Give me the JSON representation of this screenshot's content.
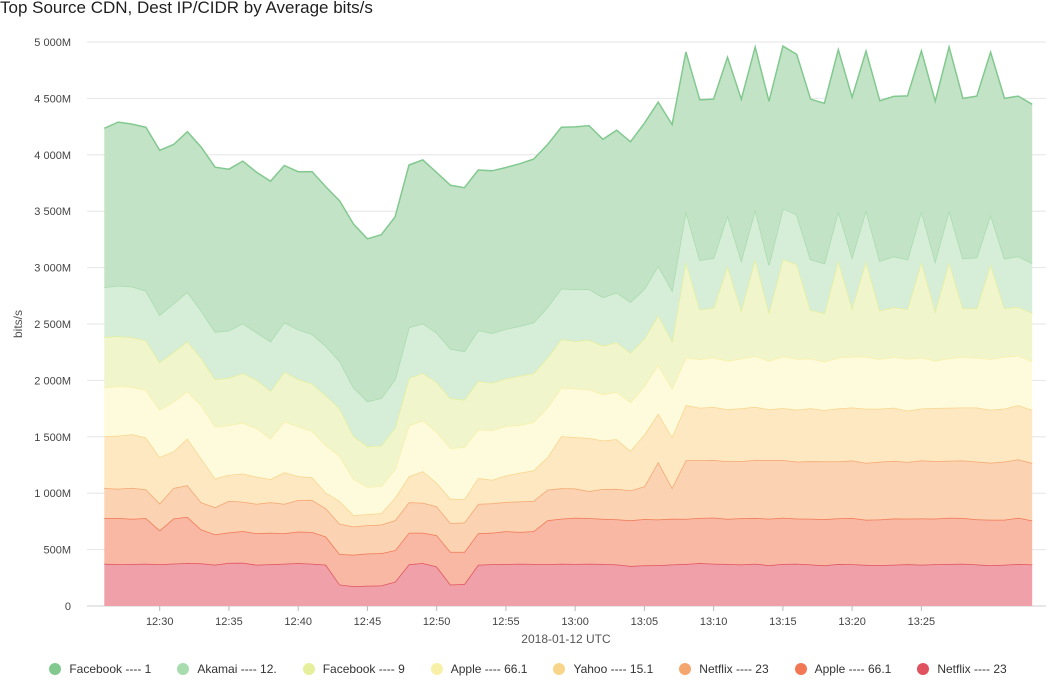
{
  "chart_data": {
    "type": "area",
    "stacked": true,
    "title": "Top Source CDN, Dest IP/CIDR by Average bits/s",
    "xlabel": "2018-01-12 UTC",
    "ylabel": "bits/s",
    "ylim": [
      0,
      5000
    ],
    "y_ticks": [
      0,
      500,
      1000,
      1500,
      2000,
      2500,
      3000,
      3500,
      4000,
      4500,
      5000
    ],
    "y_tick_labels": [
      "0",
      "500M",
      "1 000M",
      "1 500M",
      "2 000M",
      "2 500M",
      "3 000M",
      "3 500M",
      "4 000M",
      "4 500M",
      "5 000M"
    ],
    "x_start_minutes": 746,
    "x_step_minutes": 1,
    "x_ticks": [
      750,
      755,
      760,
      765,
      770,
      775,
      780,
      785,
      790,
      795,
      800,
      805
    ],
    "x_tick_labels": [
      "12:30",
      "12:35",
      "12:40",
      "12:45",
      "12:50",
      "12:55",
      "13:00",
      "13:05",
      "13:10",
      "13:15",
      "13:20",
      "13:25"
    ],
    "legend_position": "bottom",
    "series": [
      {
        "name": "Netflix ---- 23",
        "color": "#e0525e",
        "fill": "#f0a0a8",
        "values": [
          375,
          370,
          372,
          374,
          370,
          376,
          380,
          378,
          365,
          382,
          384,
          365,
          370,
          375,
          380,
          374,
          365,
          190,
          175,
          180,
          182,
          215,
          370,
          380,
          350,
          190,
          195,
          365,
          370,
          372,
          374,
          372,
          370,
          374,
          372,
          374,
          372,
          368,
          355,
          360,
          362,
          368,
          372,
          380,
          374,
          372,
          368,
          375,
          362,
          372,
          375,
          368,
          360,
          372,
          370,
          364,
          362,
          366,
          370,
          366,
          370,
          372,
          375,
          368,
          360,
          365,
          372,
          368
        ]
      },
      {
        "name": "Apple ---- 66.1",
        "color": "#f27755",
        "fill": "#f8b8a4",
        "values": [
          405,
          410,
          400,
          405,
          300,
          400,
          410,
          300,
          270,
          270,
          280,
          280,
          280,
          270,
          280,
          282,
          250,
          270,
          280,
          285,
          285,
          280,
          280,
          270,
          278,
          290,
          285,
          280,
          280,
          290,
          282,
          290,
          390,
          400,
          410,
          405,
          400,
          400,
          405,
          410,
          405,
          405,
          400,
          400,
          410,
          400,
          410,
          405,
          412,
          410,
          400,
          405,
          410,
          405,
          410,
          400,
          405,
          410,
          405,
          410,
          405,
          410,
          405,
          400,
          405,
          400,
          410,
          390
        ]
      },
      {
        "name": "Netflix ---- 23",
        "color": "#f5a66e",
        "fill": "#fbd2b2",
        "values": [
          265,
          260,
          275,
          255,
          240,
          270,
          280,
          240,
          240,
          280,
          260,
          260,
          270,
          260,
          280,
          285,
          250,
          270,
          250,
          250,
          255,
          265,
          270,
          265,
          255,
          255,
          260,
          260,
          260,
          260,
          270,
          270,
          270,
          270,
          260,
          240,
          265,
          270,
          265,
          290,
          510,
          275,
          520,
          512,
          510,
          512,
          505,
          515,
          520,
          512,
          505,
          510,
          512,
          505,
          510,
          505,
          512,
          510,
          502,
          515,
          510,
          505,
          510,
          512,
          505,
          515,
          518,
          510
        ]
      },
      {
        "name": "Yahoo ---- 15.1",
        "color": "#f9d58a",
        "fill": "#fde8c2",
        "values": [
          460,
          470,
          475,
          460,
          410,
          325,
          415,
          390,
          255,
          230,
          250,
          240,
          205,
          280,
          210,
          200,
          140,
          200,
          100,
          100,
          100,
          200,
          230,
          280,
          210,
          215,
          208,
          230,
          208,
          235,
          255,
          270,
          290,
          460,
          455,
          470,
          430,
          440,
          350,
          460,
          430,
          450,
          490,
          465,
          470,
          460,
          470,
          470,
          450,
          460,
          460,
          470,
          455,
          470,
          470,
          480,
          470,
          472,
          455,
          460,
          470,
          470,
          470,
          480,
          470,
          470,
          480,
          470
        ]
      },
      {
        "name": "Apple ---- 66.1",
        "color": "#f9f0a8",
        "fill": "#fefbdc",
        "values": [
          430,
          440,
          420,
          420,
          420,
          440,
          420,
          470,
          460,
          440,
          450,
          430,
          360,
          450,
          440,
          410,
          420,
          400,
          320,
          240,
          240,
          250,
          450,
          450,
          450,
          450,
          460,
          430,
          440,
          440,
          420,
          430,
          440,
          430,
          430,
          430,
          410,
          420,
          430,
          430,
          430,
          430,
          420,
          430,
          440,
          430,
          440,
          450,
          430,
          460,
          450,
          440,
          430,
          450,
          450,
          460,
          440,
          450,
          460,
          450,
          420,
          440,
          450,
          440,
          450,
          460,
          440,
          430
        ]
      },
      {
        "name": "Facebook ---- 9",
        "color": "#e6ef9c",
        "fill": "#f0f5cc",
        "values": [
          450,
          440,
          440,
          440,
          420,
          440,
          440,
          420,
          420,
          420,
          440,
          430,
          420,
          440,
          420,
          420,
          440,
          420,
          380,
          360,
          360,
          370,
          420,
          420,
          440,
          440,
          420,
          430,
          420,
          420,
          440,
          430,
          440,
          430,
          420,
          440,
          430,
          440,
          440,
          420,
          440,
          420,
          850,
          440,
          440,
          840,
          430,
          860,
          430,
          860,
          840,
          430,
          430,
          860,
          430,
          850,
          430,
          440,
          440,
          850,
          440,
          850,
          430,
          440,
          840,
          430,
          430,
          430
        ]
      },
      {
        "name": "Akamai ---- 12.",
        "color": "#a8dcae",
        "fill": "#d6eed7",
        "values": [
          440,
          450,
          450,
          440,
          420,
          430,
          440,
          420,
          420,
          420,
          440,
          420,
          440,
          440,
          440,
          440,
          440,
          420,
          430,
          400,
          420,
          430,
          450,
          440,
          440,
          440,
          430,
          450,
          440,
          440,
          440,
          450,
          450,
          450,
          460,
          450,
          430,
          440,
          450,
          440,
          440,
          450,
          450,
          440,
          440,
          450,
          440,
          440,
          420,
          450,
          440,
          450,
          440,
          440,
          450,
          450,
          440,
          450,
          440,
          450,
          440,
          460,
          440,
          450,
          440,
          440,
          450,
          440
        ]
      },
      {
        "name": "Facebook ---- 1",
        "color": "#82c98f",
        "fill": "#c2e3c6",
        "values": [
          1410,
          1450,
          1440,
          1450,
          1460,
          1410,
          1420,
          1450,
          1460,
          1430,
          1440,
          1420,
          1420,
          1390,
          1400,
          1440,
          1410,
          1420,
          1450,
          1440,
          1450,
          1440,
          1440,
          1450,
          1420,
          1450,
          1450,
          1420,
          1440,
          1430,
          1440,
          1450,
          1440,
          1430,
          1440,
          1450,
          1400,
          1440,
          1420,
          1470,
          1450,
          1470,
          1410,
          1420,
          1410,
          1400,
          1430,
          1440,
          1450,
          1440,
          1420,
          1420,
          1420,
          1430,
          1420,
          1410,
          1420,
          1420,
          1450,
          1420,
          1420,
          1450,
          1420,
          1430,
          1440,
          1420,
          1420,
          1410
        ]
      }
    ]
  }
}
